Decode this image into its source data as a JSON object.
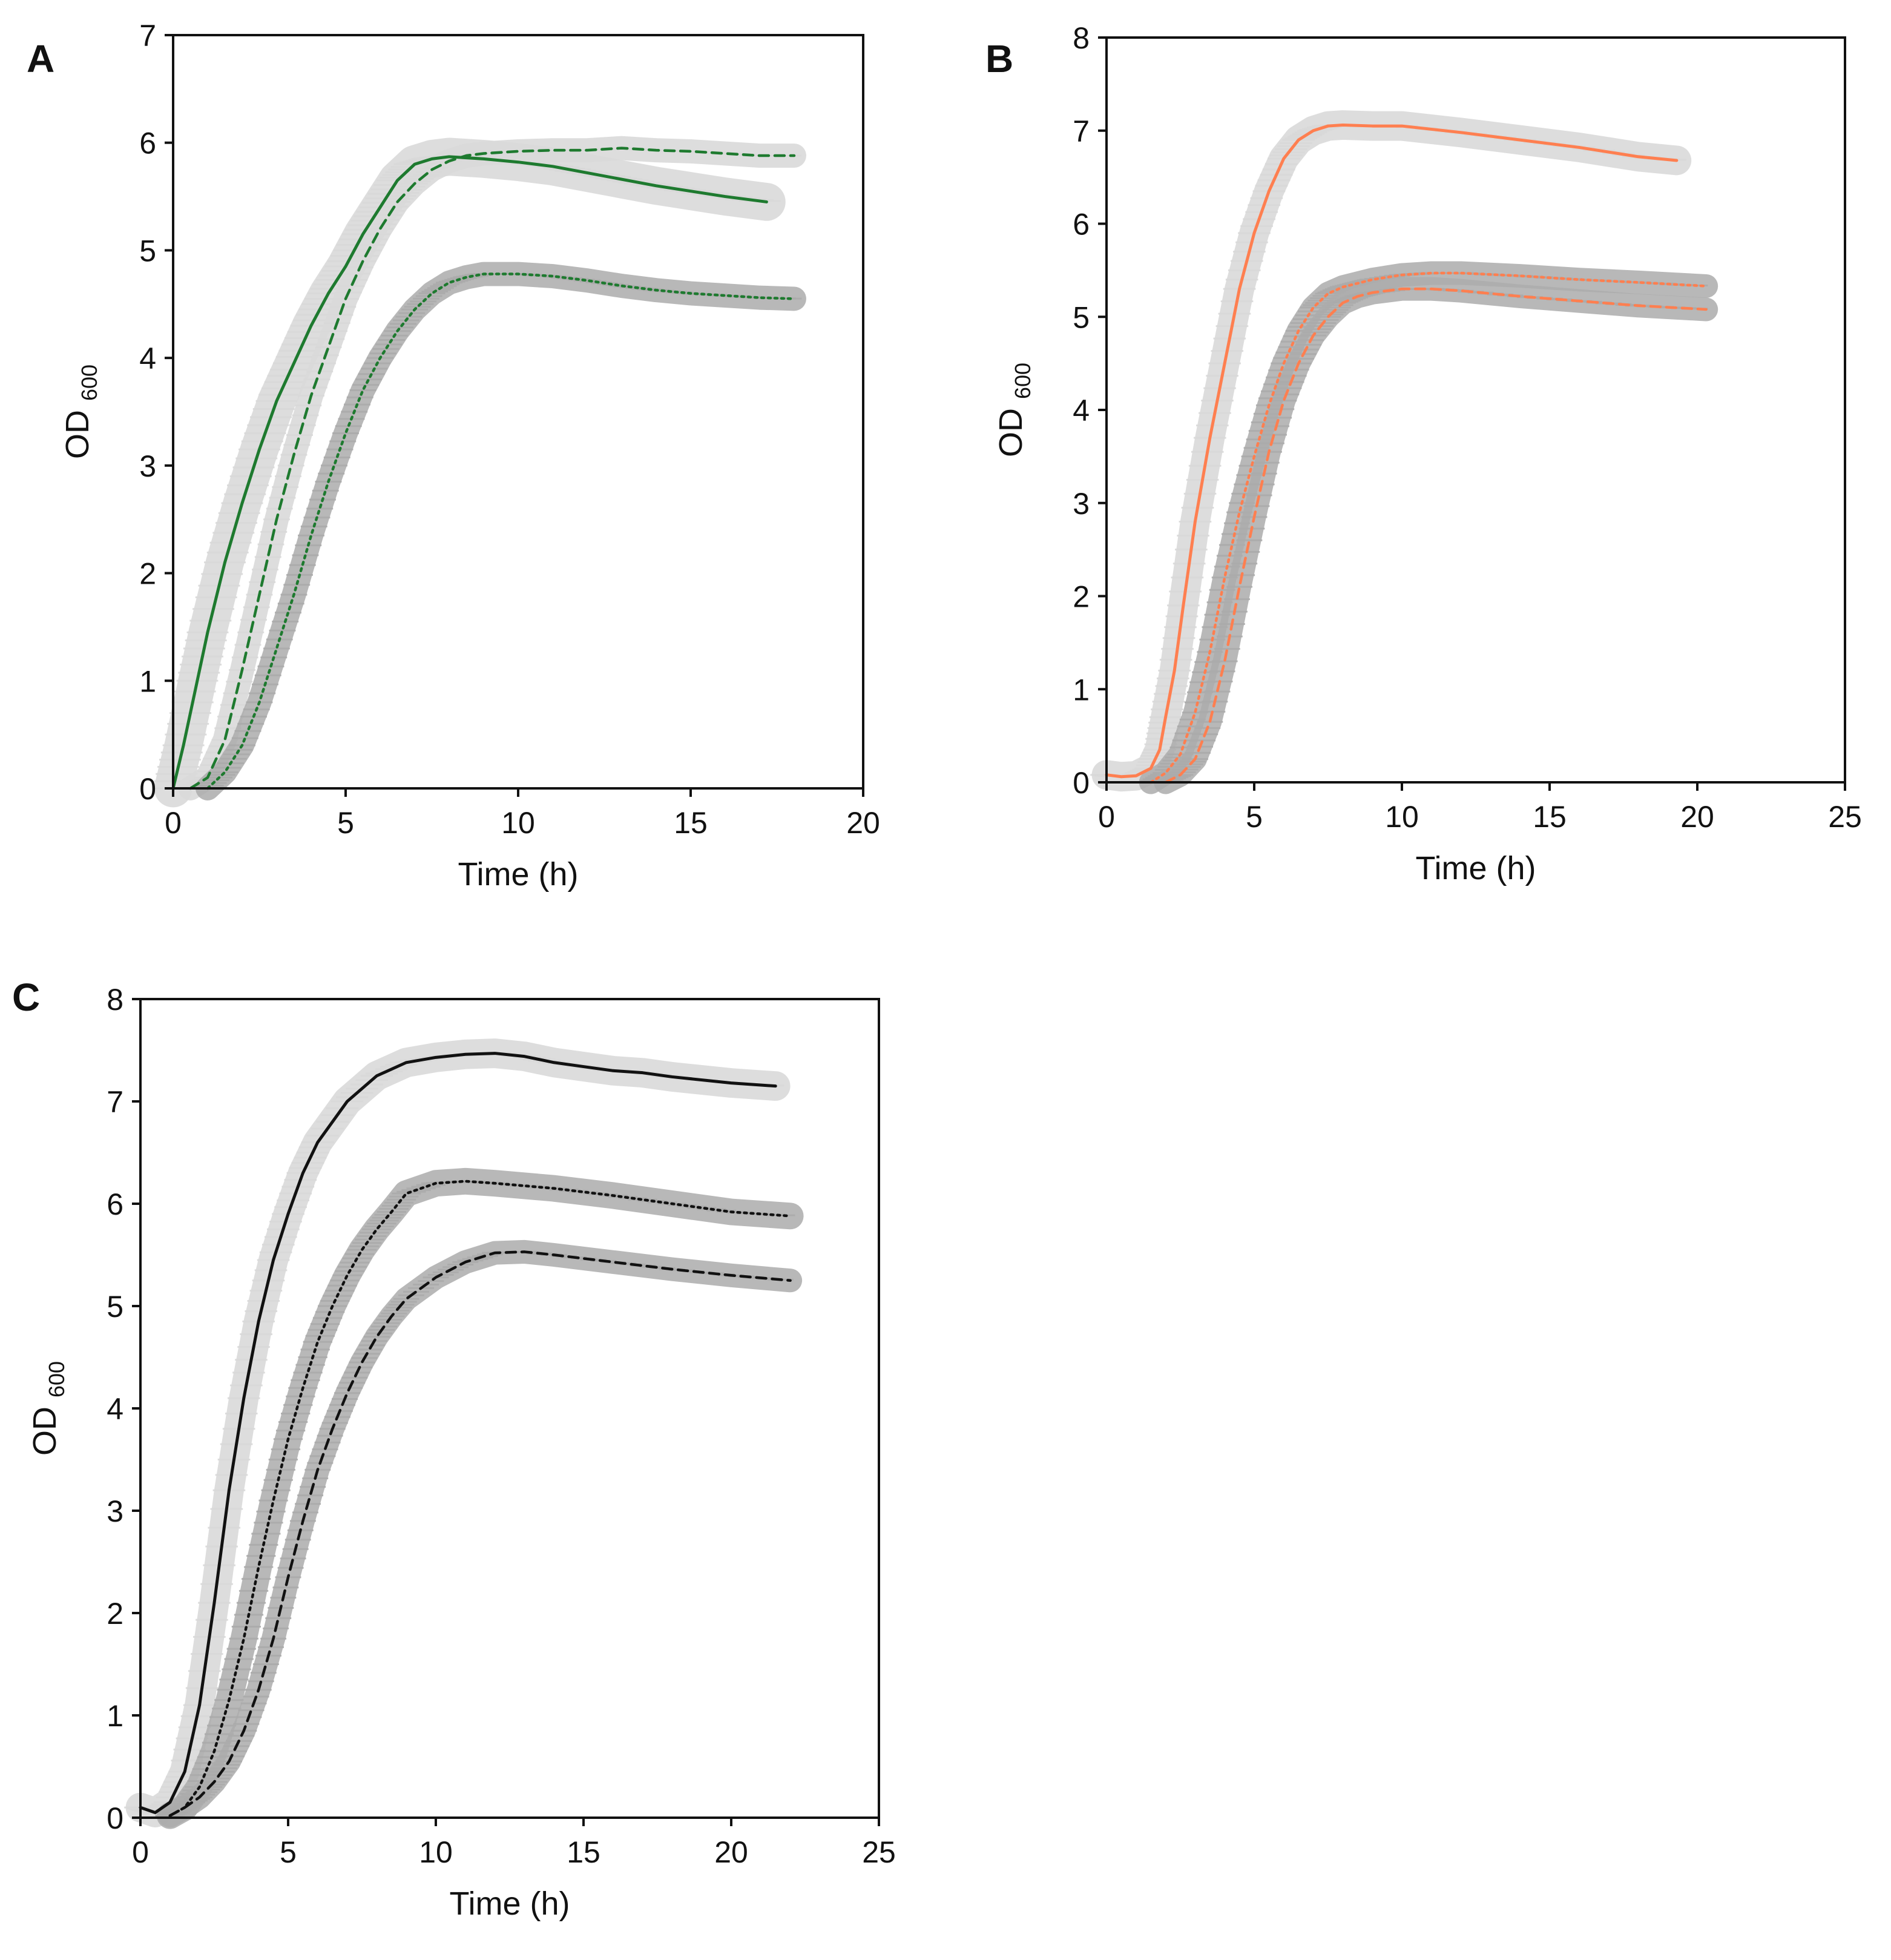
{
  "colors": {
    "green": "#1e7a2f",
    "orange": "#ff7f50",
    "black": "#111111",
    "band_light": "#d9d9d9",
    "band_dark": "#ababab"
  },
  "chart_data": [
    {
      "panel": "A",
      "type": "line",
      "xlabel": "Time (h)",
      "ylabel": "OD",
      "ylabel_sub": "600",
      "xlim": [
        0,
        20
      ],
      "ylim": [
        0,
        7
      ],
      "xticks": [
        "0",
        "5",
        "10",
        "15",
        "20"
      ],
      "yticks": [
        "0",
        "1",
        "2",
        "3",
        "4",
        "5",
        "6",
        "7"
      ],
      "series": [
        {
          "name": "solid",
          "style": "solid",
          "color": "#1e7a2f",
          "band": "light",
          "x": [
            0,
            0.3,
            0.7,
            1,
            1.5,
            2,
            2.5,
            3,
            3.5,
            4,
            4.5,
            5,
            5.5,
            6,
            6.5,
            7,
            7.5,
            8,
            9,
            10,
            11,
            12,
            13,
            14,
            15,
            16,
            17.2
          ],
          "y": [
            0,
            0.4,
            1.0,
            1.45,
            2.1,
            2.65,
            3.15,
            3.6,
            3.95,
            4.3,
            4.6,
            4.85,
            5.15,
            5.4,
            5.65,
            5.8,
            5.85,
            5.87,
            5.85,
            5.82,
            5.78,
            5.72,
            5.66,
            5.6,
            5.55,
            5.5,
            5.45
          ],
          "err": 0.55
        },
        {
          "name": "dashed",
          "style": "dashed",
          "color": "#1e7a2f",
          "band": "light",
          "x": [
            0.5,
            1,
            1.5,
            2,
            2.5,
            3,
            3.5,
            4,
            4.5,
            5,
            5.5,
            6,
            6.5,
            7,
            7.5,
            8,
            8.5,
            9,
            10,
            11,
            12,
            13,
            14,
            15,
            16,
            17,
            18
          ],
          "y": [
            0,
            0.1,
            0.45,
            1.1,
            1.8,
            2.5,
            3.1,
            3.65,
            4.1,
            4.55,
            4.9,
            5.2,
            5.45,
            5.62,
            5.75,
            5.83,
            5.88,
            5.9,
            5.92,
            5.93,
            5.93,
            5.95,
            5.93,
            5.92,
            5.9,
            5.88,
            5.88
          ],
          "err": 0.35
        },
        {
          "name": "dotted",
          "style": "dotted",
          "color": "#1e7a2f",
          "band": "dark",
          "x": [
            1,
            1.5,
            2,
            2.5,
            3,
            3.5,
            4,
            4.5,
            5,
            5.5,
            6,
            6.5,
            7,
            7.5,
            8,
            8.5,
            9,
            9.5,
            10,
            11,
            12,
            13,
            14,
            15,
            16,
            17,
            18
          ],
          "y": [
            0,
            0.15,
            0.4,
            0.8,
            1.3,
            1.8,
            2.35,
            2.85,
            3.3,
            3.7,
            4.0,
            4.25,
            4.45,
            4.6,
            4.7,
            4.75,
            4.78,
            4.78,
            4.78,
            4.76,
            4.72,
            4.67,
            4.63,
            4.6,
            4.58,
            4.56,
            4.55
          ],
          "err": 0.35
        }
      ]
    },
    {
      "panel": "B",
      "type": "line",
      "xlabel": "Time (h)",
      "ylabel": "OD",
      "ylabel_sub": "600",
      "xlim": [
        0,
        25
      ],
      "ylim": [
        0,
        8
      ],
      "xticks": [
        "0",
        "5",
        "10",
        "15",
        "20",
        "25"
      ],
      "yticks": [
        "0",
        "1",
        "2",
        "3",
        "4",
        "5",
        "6",
        "7",
        "8"
      ],
      "series": [
        {
          "name": "solid",
          "style": "solid",
          "color": "#ff7f50",
          "band": "light",
          "x": [
            0,
            0.5,
            1,
            1.5,
            1.8,
            2,
            2.3,
            2.6,
            3,
            3.5,
            4,
            4.5,
            5,
            5.5,
            6,
            6.5,
            7,
            7.5,
            8,
            9,
            10,
            12,
            14,
            16,
            18,
            19.3
          ],
          "y": [
            0.08,
            0.06,
            0.07,
            0.15,
            0.35,
            0.7,
            1.2,
            1.9,
            2.8,
            3.7,
            4.5,
            5.3,
            5.9,
            6.35,
            6.7,
            6.9,
            7.0,
            7.05,
            7.06,
            7.05,
            7.05,
            6.98,
            6.9,
            6.82,
            6.72,
            6.68
          ],
          "err": 0.5
        },
        {
          "name": "dotted",
          "style": "dotted",
          "color": "#ff7f50",
          "band": "dark",
          "x": [
            1.5,
            2,
            2.5,
            3,
            3.5,
            4,
            4.5,
            5,
            5.5,
            6,
            6.5,
            7,
            7.5,
            8,
            8.5,
            9,
            10,
            11,
            12,
            14,
            16,
            18,
            20.3
          ],
          "y": [
            0,
            0.1,
            0.3,
            0.75,
            1.4,
            2.2,
            2.9,
            3.5,
            4.05,
            4.5,
            4.85,
            5.1,
            5.25,
            5.32,
            5.36,
            5.4,
            5.45,
            5.47,
            5.47,
            5.44,
            5.4,
            5.37,
            5.33
          ],
          "err": 0.4
        },
        {
          "name": "dashed",
          "style": "dashed",
          "color": "#ff7f50",
          "band": "dark",
          "x": [
            2,
            2.5,
            3,
            3.5,
            4,
            4.5,
            5,
            5.5,
            6,
            6.5,
            7,
            7.5,
            8,
            8.5,
            9,
            10,
            11,
            12,
            14,
            16,
            18,
            20.3
          ],
          "y": [
            0,
            0.08,
            0.25,
            0.65,
            1.3,
            2.1,
            2.85,
            3.55,
            4.1,
            4.5,
            4.8,
            5.0,
            5.15,
            5.22,
            5.26,
            5.3,
            5.3,
            5.28,
            5.22,
            5.17,
            5.12,
            5.08
          ],
          "err": 0.4
        }
      ]
    },
    {
      "panel": "C",
      "type": "line",
      "xlabel": "Time (h)",
      "ylabel": "OD",
      "ylabel_sub": "600",
      "xlim": [
        0,
        25
      ],
      "ylim": [
        0,
        8
      ],
      "xticks": [
        "0",
        "5",
        "10",
        "15",
        "20",
        "25"
      ],
      "yticks": [
        "0",
        "1",
        "2",
        "3",
        "4",
        "5",
        "6",
        "7",
        "8"
      ],
      "series": [
        {
          "name": "solid",
          "style": "solid",
          "color": "#111111",
          "band": "light",
          "x": [
            0,
            0.5,
            1,
            1.5,
            2,
            2.5,
            3,
            3.5,
            4,
            4.5,
            5,
            5.5,
            6,
            7,
            8,
            9,
            10,
            11,
            12,
            13,
            14,
            15,
            16,
            17,
            18,
            20,
            21.5
          ],
          "y": [
            0.1,
            0.05,
            0.15,
            0.45,
            1.1,
            2.1,
            3.2,
            4.1,
            4.85,
            5.45,
            5.9,
            6.3,
            6.6,
            7.0,
            7.25,
            7.38,
            7.43,
            7.46,
            7.47,
            7.44,
            7.38,
            7.34,
            7.3,
            7.28,
            7.24,
            7.18,
            7.15
          ],
          "err": 0.5
        },
        {
          "name": "dotted",
          "style": "dotted",
          "color": "#111111",
          "band": "dark",
          "x": [
            1,
            1.5,
            2,
            2.5,
            3,
            3.5,
            4,
            4.5,
            5,
            5.5,
            6,
            6.5,
            7,
            7.5,
            8,
            8.5,
            9,
            10,
            11,
            12,
            14,
            16,
            18,
            20,
            22
          ],
          "y": [
            0.02,
            0.1,
            0.3,
            0.65,
            1.15,
            1.75,
            2.45,
            3.1,
            3.7,
            4.2,
            4.65,
            5.0,
            5.3,
            5.55,
            5.75,
            5.92,
            6.1,
            6.2,
            6.22,
            6.2,
            6.15,
            6.08,
            6.0,
            5.92,
            5.88
          ],
          "err": 0.45
        },
        {
          "name": "dashed",
          "style": "dashed",
          "color": "#111111",
          "band": "dark",
          "x": [
            1,
            1.5,
            2,
            2.5,
            3,
            3.5,
            4,
            4.5,
            5,
            5.5,
            6,
            6.5,
            7,
            7.5,
            8,
            8.5,
            9,
            10,
            11,
            12,
            13,
            14,
            16,
            18,
            20,
            22
          ],
          "y": [
            0.02,
            0.1,
            0.2,
            0.35,
            0.55,
            0.85,
            1.25,
            1.75,
            2.35,
            2.9,
            3.4,
            3.8,
            4.15,
            4.45,
            4.7,
            4.9,
            5.07,
            5.28,
            5.43,
            5.52,
            5.53,
            5.5,
            5.43,
            5.36,
            5.3,
            5.25
          ],
          "err": 0.4
        }
      ]
    }
  ]
}
